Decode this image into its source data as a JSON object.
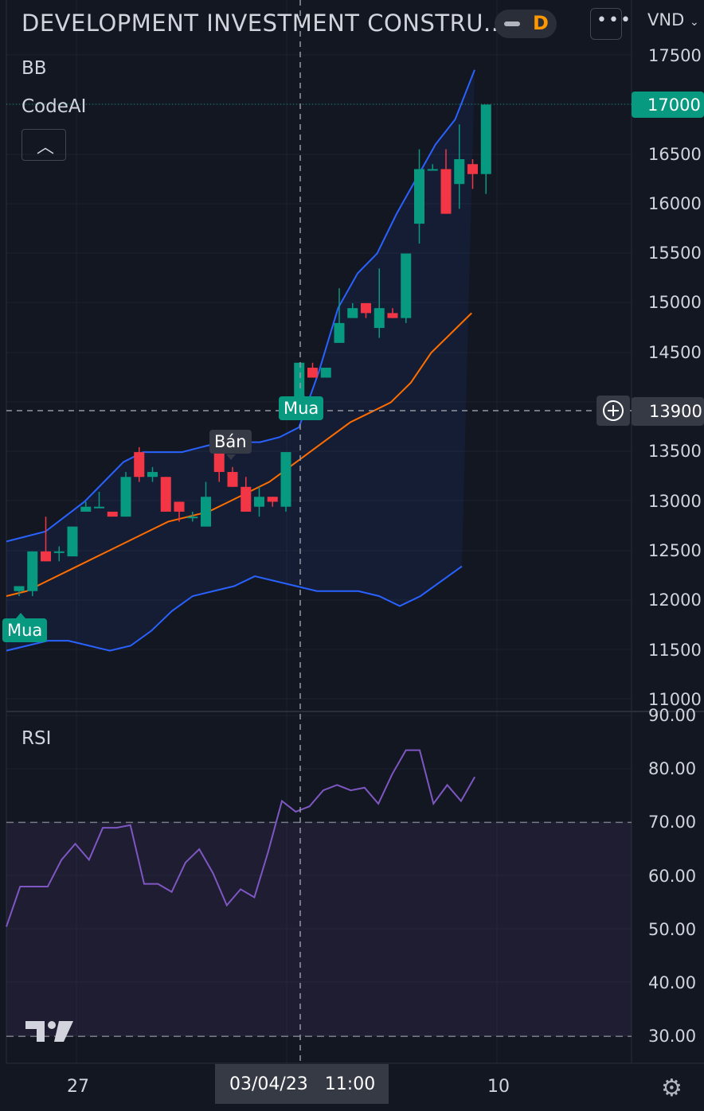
{
  "header": {
    "title": "DEVELOPMENT INVESTMENT CONSTRU...",
    "interval_letter": "D",
    "more_icon": "more-horizontal-icon",
    "currency": "VND"
  },
  "legend": {
    "indicator_1": "BB",
    "indicator_2": "CodeAI",
    "collapse_icon": "chevron-up-icon",
    "rsi": "RSI"
  },
  "price_axis": {
    "labels": [
      "17500",
      "16500",
      "16000",
      "15500",
      "15000",
      "14500",
      "13500",
      "13000",
      "12500",
      "12000",
      "11500",
      "11000"
    ],
    "last_price": "17000",
    "crosshair_price": "13900",
    "crosshair_plus_icon": "plus-circle-icon"
  },
  "rsi_axis": {
    "labels": [
      "90.00",
      "80.00",
      "70.00",
      "60.00",
      "50.00",
      "40.00",
      "30.00"
    ]
  },
  "time_axis": {
    "labels": [
      "27",
      "10"
    ],
    "crosshair_time": "03/04/23   11:00",
    "settings_icon": "gear-icon",
    "logo": "tradingview-logo"
  },
  "signals": {
    "buy": "Mua",
    "sell": "Bán"
  },
  "colors": {
    "background": "#131722",
    "up": "#089981",
    "down": "#f23645",
    "bb_upper": "#2962ff",
    "bb_basis": "#ff6d00",
    "rsi_line": "#7e57c2",
    "label_green": "#089981"
  },
  "chart_data": [
    {
      "type": "candlestick",
      "title": "DEVELOPMENT INVESTMENT CONSTRU...",
      "ylabel": "VND",
      "ylim": [
        10950,
        17700
      ],
      "candles": [
        {
          "o": 12100,
          "h": 12150,
          "l": 12050,
          "c": 12150
        },
        {
          "o": 12100,
          "h": 12500,
          "l": 12050,
          "c": 12500
        },
        {
          "o": 12500,
          "h": 12850,
          "l": 12400,
          "c": 12400
        },
        {
          "o": 12500,
          "h": 12550,
          "l": 12400,
          "c": 12500
        },
        {
          "o": 12450,
          "h": 12750,
          "l": 12450,
          "c": 12750
        },
        {
          "o": 12900,
          "h": 13000,
          "l": 12900,
          "c": 12950
        },
        {
          "o": 12950,
          "h": 13100,
          "l": 12950,
          "c": 12950
        },
        {
          "o": 12900,
          "h": 12900,
          "l": 12850,
          "c": 12850
        },
        {
          "o": 12850,
          "h": 13300,
          "l": 12850,
          "c": 13250
        },
        {
          "o": 13500,
          "h": 13550,
          "l": 13200,
          "c": 13250
        },
        {
          "o": 13250,
          "h": 13350,
          "l": 13200,
          "c": 13300
        },
        {
          "o": 13250,
          "h": 13250,
          "l": 12900,
          "c": 12900
        },
        {
          "o": 13000,
          "h": 13000,
          "l": 12800,
          "c": 12900
        },
        {
          "o": 12850,
          "h": 12900,
          "l": 12800,
          "c": 12850
        },
        {
          "o": 12750,
          "h": 13200,
          "l": 12750,
          "c": 13050
        },
        {
          "o": 13500,
          "h": 13500,
          "l": 13200,
          "c": 13300
        },
        {
          "o": 13300,
          "h": 13350,
          "l": 13150,
          "c": 13150
        },
        {
          "o": 13150,
          "h": 13250,
          "l": 12900,
          "c": 12900
        },
        {
          "o": 12950,
          "h": 13150,
          "l": 12850,
          "c": 13050
        },
        {
          "o": 13050,
          "h": 13050,
          "l": 12950,
          "c": 13000
        },
        {
          "o": 12950,
          "h": 13500,
          "l": 12900,
          "c": 13500
        },
        {
          "o": 14000,
          "h": 14400,
          "l": 13900,
          "c": 14400
        },
        {
          "o": 14350,
          "h": 14400,
          "l": 14250,
          "c": 14250
        },
        {
          "o": 14250,
          "h": 14350,
          "l": 14250,
          "c": 14350
        },
        {
          "o": 14600,
          "h": 15150,
          "l": 14600,
          "c": 14800
        },
        {
          "o": 14850,
          "h": 15000,
          "l": 14850,
          "c": 14950
        },
        {
          "o": 15000,
          "h": 15000,
          "l": 14850,
          "c": 14900
        },
        {
          "o": 14750,
          "h": 15350,
          "l": 14650,
          "c": 14950
        },
        {
          "o": 14900,
          "h": 14950,
          "l": 14850,
          "c": 14850
        },
        {
          "o": 14850,
          "h": 15500,
          "l": 14800,
          "c": 15500
        },
        {
          "o": 15800,
          "h": 16550,
          "l": 15600,
          "c": 16350
        },
        {
          "o": 16350,
          "h": 16400,
          "l": 16350,
          "c": 16350
        },
        {
          "o": 16350,
          "h": 16550,
          "l": 15900,
          "c": 15900
        },
        {
          "o": 16200,
          "h": 16800,
          "l": 15950,
          "c": 16450
        },
        {
          "o": 16400,
          "h": 16450,
          "l": 16150,
          "c": 16300
        },
        {
          "o": 16300,
          "h": 17000,
          "l": 16100,
          "c": 17000
        }
      ],
      "bb_upper": [
        12600,
        12650,
        12700,
        12850,
        13000,
        13200,
        13400,
        13500,
        13500,
        13500,
        13550,
        13600,
        13600,
        13600,
        13650,
        13750,
        14300,
        14950,
        15300,
        15500,
        15900,
        16250,
        16600,
        16850,
        17350
      ],
      "bb_basis": [
        12050,
        12100,
        12200,
        12300,
        12400,
        12500,
        12600,
        12700,
        12800,
        12850,
        12900,
        13000,
        13100,
        13200,
        13350,
        13500,
        13650,
        13800,
        13900,
        14000,
        14200,
        14500,
        14700,
        14900
      ],
      "bb_lower": [
        11500,
        11550,
        11600,
        11600,
        11550,
        11500,
        11550,
        11700,
        11900,
        12050,
        12100,
        12150,
        12250,
        12200,
        12150,
        12100,
        12100,
        12100,
        12050,
        11950,
        12050,
        12200,
        12350
      ],
      "signals": [
        {
          "label": "Mua",
          "index": 0
        },
        {
          "label": "Bán",
          "index": 15
        },
        {
          "label": "Mua",
          "index": 21
        }
      ]
    },
    {
      "type": "line",
      "title": "RSI",
      "ylim": [
        28,
        90
      ],
      "hline": 70,
      "series": [
        {
          "values": [
            50.5,
            58,
            58,
            58,
            63,
            66,
            63,
            69,
            69,
            69.5,
            58.5,
            58.5,
            57,
            62.5,
            65,
            60.5,
            54.5,
            57.5,
            56,
            64.5,
            74,
            72,
            73,
            76,
            77,
            76,
            76.5,
            73.5,
            79,
            83.5,
            83.5,
            73.5,
            77,
            74,
            78.5
          ]
        }
      ]
    }
  ]
}
